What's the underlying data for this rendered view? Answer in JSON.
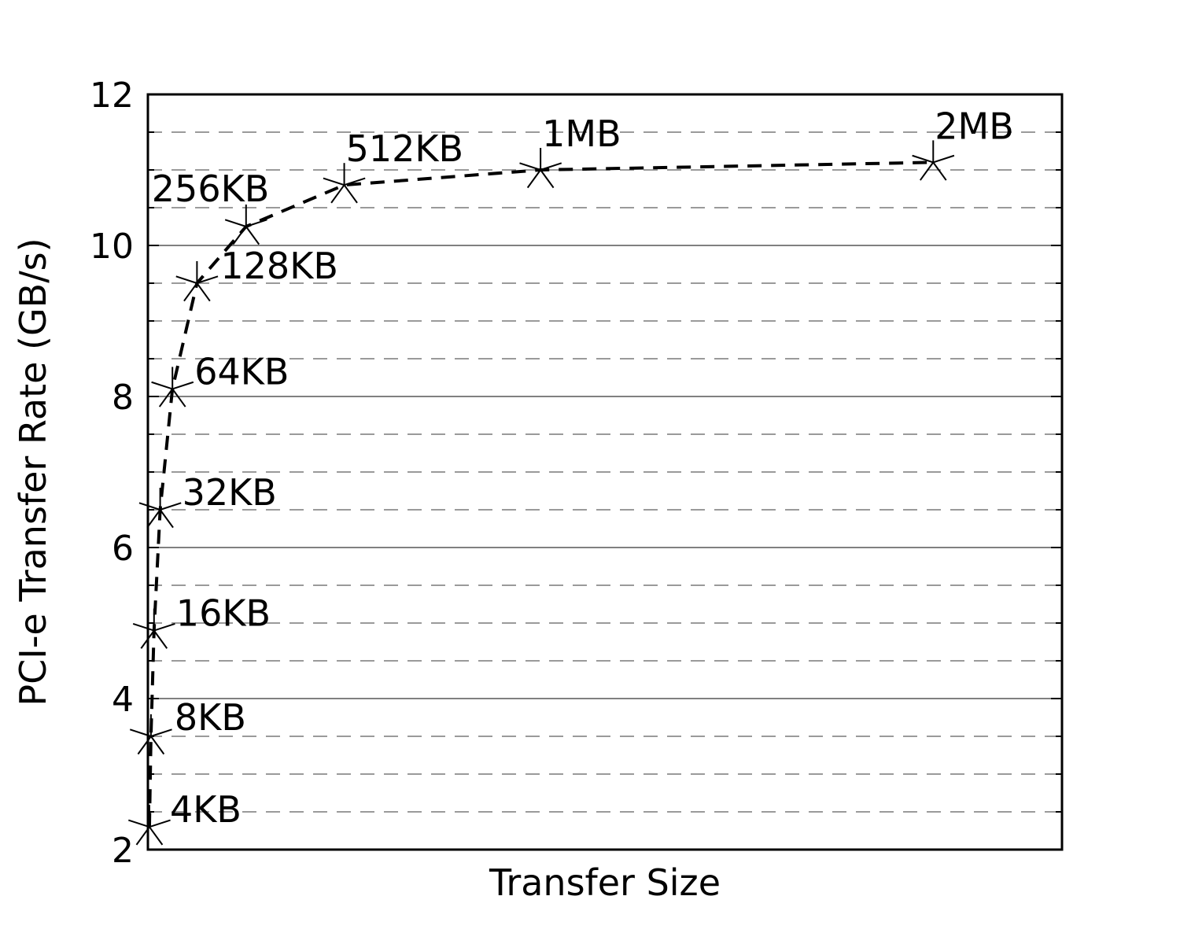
{
  "chart_data": {
    "type": "line",
    "title": "",
    "xlabel": "Transfer Size",
    "ylabel": "PCI-e Transfer Rate (GB/s)",
    "x_unit": "KB",
    "ylim": [
      2,
      12
    ],
    "yticks": [
      "2",
      "4",
      "6",
      "8",
      "10",
      "12"
    ],
    "grid": {
      "major": true,
      "minor": true
    },
    "series": [
      {
        "marker": "star",
        "line_style": "dashed",
        "color": "#000000",
        "points": [
          {
            "x": 4,
            "y": 2.3,
            "label": "4KB"
          },
          {
            "x": 8,
            "y": 3.5,
            "label": "8KB"
          },
          {
            "x": 16,
            "y": 4.9,
            "label": "16KB"
          },
          {
            "x": 32,
            "y": 6.5,
            "label": "32KB"
          },
          {
            "x": 64,
            "y": 8.1,
            "label": "64KB"
          },
          {
            "x": 128,
            "y": 9.5,
            "label": "128KB"
          },
          {
            "x": 256,
            "y": 10.25,
            "label": "256KB"
          },
          {
            "x": 512,
            "y": 10.8,
            "label": "512KB"
          },
          {
            "x": 1024,
            "y": 11.0,
            "label": "1MB"
          },
          {
            "x": 2048,
            "y": 11.1,
            "label": "2MB"
          }
        ]
      }
    ]
  }
}
